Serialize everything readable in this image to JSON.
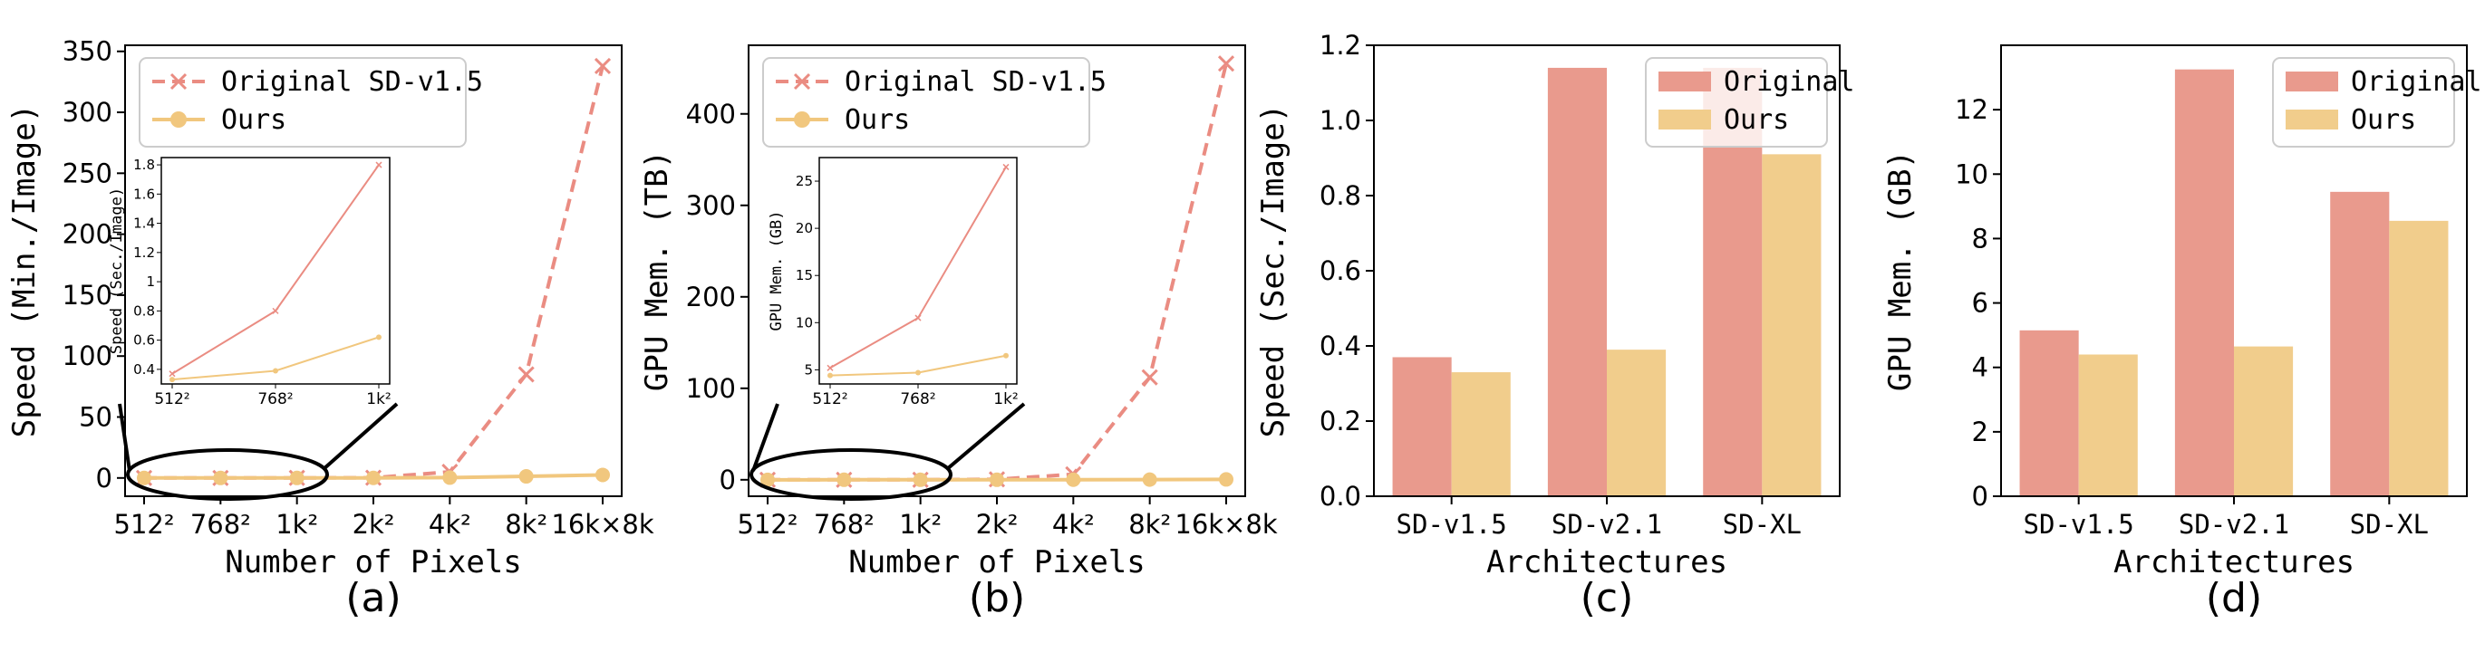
{
  "chart_data": [
    {
      "panel_label": "(a)",
      "type": "line",
      "xlabel": "Number of Pixels",
      "ylabel": "Speed (Min./Image)",
      "categories": [
        "512²",
        "768²",
        "1k²",
        "2k²",
        "4k²",
        "8k²",
        "16k×8k"
      ],
      "ylim": [
        -15,
        355
      ],
      "yticks": [
        0,
        50,
        100,
        150,
        200,
        250,
        300,
        350
      ],
      "legend_position": "top-left",
      "series": [
        {
          "name": "Original SD-v1.5",
          "marker": "x",
          "linestyle": "dashed",
          "color": "#EA8C82",
          "values": [
            0.03,
            0.02,
            0.05,
            0.2,
            5,
            85,
            338
          ]
        },
        {
          "name": "Ours",
          "marker": "o",
          "linestyle": "solid",
          "color": "#F1C77E",
          "values": [
            0.006,
            0.007,
            0.01,
            0.05,
            0.3,
            1.3,
            2.5
          ]
        }
      ],
      "inset": {
        "ylabel": "Speed (Sec./Image)",
        "categories": [
          "512²",
          "768²",
          "1k²"
        ],
        "ylim": [
          0.3,
          1.85
        ],
        "yticks": [
          0.4,
          0.6,
          0.8,
          1.0,
          1.2,
          1.4,
          1.6,
          1.8
        ],
        "series": [
          {
            "name": "Original SD-v1.5",
            "values": [
              0.37,
              0.8,
              1.8
            ]
          },
          {
            "name": "Ours",
            "values": [
              0.33,
              0.39,
              0.62
            ]
          }
        ]
      }
    },
    {
      "panel_label": "(b)",
      "type": "line",
      "xlabel": "Number of Pixels",
      "ylabel": "GPU Mem. (TB)",
      "categories": [
        "512²",
        "768²",
        "1k²",
        "2k²",
        "4k²",
        "8k²",
        "16k×8k"
      ],
      "ylim": [
        -18,
        475
      ],
      "yticks": [
        0,
        100,
        200,
        300,
        400
      ],
      "legend_position": "top-left",
      "series": [
        {
          "name": "Original SD-v1.5",
          "marker": "x",
          "linestyle": "dashed",
          "color": "#EA8C82",
          "values": [
            0.005,
            0.01,
            0.013,
            0.5,
            6,
            112,
            455
          ]
        },
        {
          "name": "Ours",
          "marker": "o",
          "linestyle": "solid",
          "color": "#F1C77E",
          "values": [
            0.004,
            0.005,
            0.006,
            0.01,
            0.05,
            0.2,
            0.4
          ]
        }
      ],
      "inset": {
        "ylabel": "GPU Mem. (GB)",
        "categories": [
          "512²",
          "768²",
          "1k²"
        ],
        "ylim": [
          3.5,
          27.5
        ],
        "yticks": [
          5,
          10,
          15,
          20,
          25
        ],
        "series": [
          {
            "name": "Original SD-v1.5",
            "values": [
              5.2,
              10.5,
              26.5
            ]
          },
          {
            "name": "Ours",
            "values": [
              4.4,
              4.7,
              6.5
            ]
          }
        ]
      }
    },
    {
      "panel_label": "(c)",
      "type": "bar",
      "xlabel": "Architectures",
      "ylabel": "Speed (Sec./Image)",
      "categories": [
        "SD-v1.5",
        "SD-v2.1",
        "SD-XL"
      ],
      "ylim": [
        0,
        1.2
      ],
      "yticks": [
        0.0,
        0.2,
        0.4,
        0.6,
        0.8,
        1.0,
        1.2
      ],
      "legend_position": "top-right",
      "series": [
        {
          "name": "Original",
          "color": "#E99A8D",
          "values": [
            0.37,
            1.14,
            1.14
          ]
        },
        {
          "name": "Ours",
          "color": "#F1CD8C",
          "values": [
            0.33,
            0.39,
            0.91
          ]
        }
      ]
    },
    {
      "panel_label": "(d)",
      "type": "bar",
      "xlabel": "Architectures",
      "ylabel": "GPU Mem. (GB)",
      "categories": [
        "SD-v1.5",
        "SD-v2.1",
        "SD-XL"
      ],
      "ylim": [
        0,
        14
      ],
      "yticks": [
        0,
        2,
        4,
        6,
        8,
        10,
        12
      ],
      "legend_position": "top-right",
      "series": [
        {
          "name": "Original",
          "color": "#E99A8D",
          "values": [
            5.15,
            13.25,
            9.45
          ]
        },
        {
          "name": "Ours",
          "color": "#F1CD8C",
          "values": [
            4.4,
            4.65,
            8.55
          ]
        }
      ]
    }
  ]
}
